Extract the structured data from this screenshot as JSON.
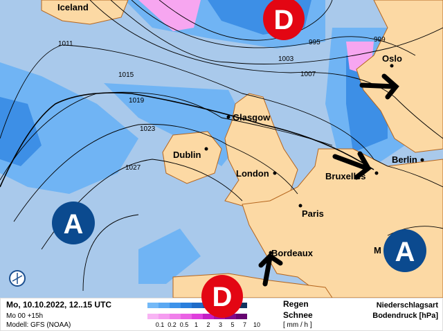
{
  "map": {
    "places": [
      "Iceland",
      "Oslo",
      "Glasgow",
      "Dublin",
      "London",
      "Berlin",
      "Bruxelles",
      "Paris",
      "Bordeaux",
      "M"
    ],
    "isobars": [
      "995",
      "999",
      "1003",
      "1007",
      "1011",
      "1015",
      "1019",
      "1023",
      "1027"
    ],
    "pressure_centers": [
      {
        "label": "D",
        "type": "low",
        "color": "#e30613"
      },
      {
        "label": "A",
        "type": "high",
        "color": "#0b4a8f"
      },
      {
        "label": "A",
        "type": "high",
        "color": "#0b4a8f"
      },
      {
        "label": "D",
        "type": "low",
        "color": "#e30613"
      }
    ],
    "colors": {
      "sea": "#a9c9eb",
      "land": "#fcd9a4",
      "rain_light": "#70b4f4",
      "rain_mid": "#3d8fe6",
      "snow": "#f7a6f0",
      "coast": "#b5651d"
    }
  },
  "legend": {
    "datetime": "Mo, 10.10.2022, 12..15 UTC",
    "run": "Mo 00 +15h",
    "model": "Modell: GFS (NOAA)",
    "rain_label": "Regen",
    "snow_label": "Schnee",
    "unit": "[ mm / h ]",
    "ticks": [
      "0.1",
      "0.2",
      "0.5",
      "1",
      "2",
      "3",
      "5",
      "7",
      "10"
    ],
    "title1": "Niederschlagsart",
    "title2": "Bodendruck [hPa]",
    "rain_colors": [
      "#74b9f7",
      "#5aa8f2",
      "#3d93ea",
      "#2a7fdd",
      "#1f6cc8",
      "#1858ae",
      "#154a93",
      "#133d7a",
      "#12345f"
    ],
    "snow_colors": [
      "#f8b4f4",
      "#f59cf0",
      "#f07fea",
      "#ea62e4",
      "#df3fdc",
      "#c41fc4",
      "#a512a8",
      "#84098c",
      "#660470"
    ]
  }
}
